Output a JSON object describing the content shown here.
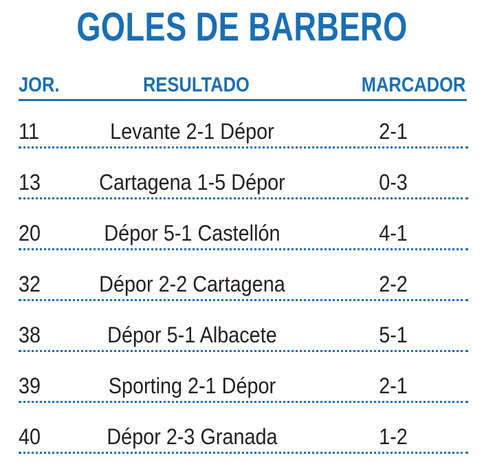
{
  "title": "GOLES DE BARBERO",
  "columns": {
    "jornada": "JOR.",
    "resultado": "RESULTADO",
    "marcador": "MARCADOR"
  },
  "rows": [
    {
      "jornada": "11",
      "resultado": "Levante 2-1 Dépor",
      "marcador": "2-1"
    },
    {
      "jornada": "13",
      "resultado": "Cartagena 1-5 Dépor",
      "marcador": "0-3"
    },
    {
      "jornada": "20",
      "resultado": "Dépor 5-1 Castellón",
      "marcador": "4-1"
    },
    {
      "jornada": "32",
      "resultado": "Dépor 2-2 Cartagena",
      "marcador": "2-2"
    },
    {
      "jornada": "38",
      "resultado": "Dépor 5-1 Albacete",
      "marcador": "5-1"
    },
    {
      "jornada": "39",
      "resultado": "Sporting 2-1 Dépor",
      "marcador": "2-1"
    },
    {
      "jornada": "40",
      "resultado": "Dépor 2-3 Granada",
      "marcador": "1-2"
    }
  ],
  "colors": {
    "accent": "#1a6fb3",
    "text": "#231f20"
  }
}
